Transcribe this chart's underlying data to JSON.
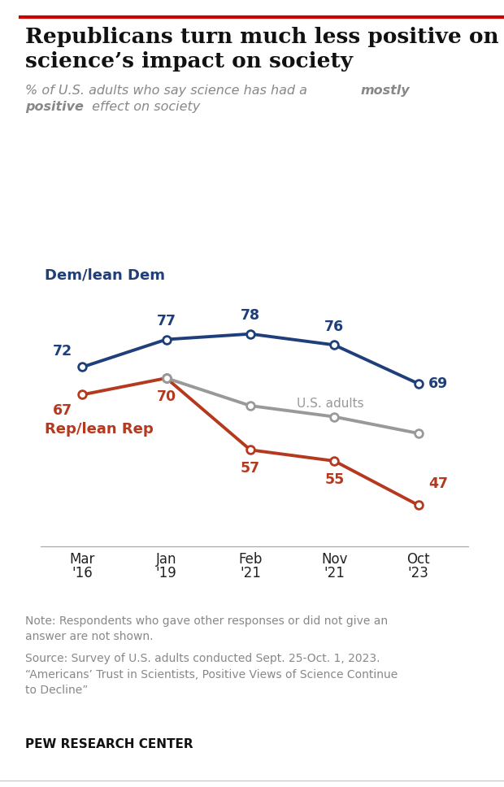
{
  "title_line1": "Republicans turn much less positive on",
  "title_line2": "science’s impact on society",
  "x_positions": [
    0,
    1,
    2,
    3,
    4
  ],
  "x_labels_top": [
    "Mar",
    "Jan",
    "Feb",
    "Nov",
    "Oct"
  ],
  "x_labels_bot": [
    "'16",
    "'19",
    "'21",
    "'21",
    "'23"
  ],
  "dem_values": [
    72,
    77,
    78,
    76,
    69
  ],
  "rep_values": [
    67,
    70,
    57,
    55,
    47
  ],
  "us_values": [
    null,
    70,
    65,
    63,
    60
  ],
  "dem_color": "#1f3f7a",
  "rep_color": "#b5391e",
  "us_color": "#999999",
  "dem_label": "Dem/lean Dem",
  "rep_label": "Rep/lean Rep",
  "us_label": "U.S. adults",
  "note_text": "Note: Respondents who gave other responses or did not give an\nanswer are not shown.",
  "source_text": "Source: Survey of U.S. adults conducted Sept. 25-Oct. 1, 2023.\n“Americans’ Trust in Scientists, Positive Views of Science Continue\nto Decline”",
  "footer": "PEW RESEARCH CENTER",
  "background_color": "#ffffff",
  "line_width": 2.8,
  "marker_size": 7,
  "top_bar_color": "#cc0000"
}
